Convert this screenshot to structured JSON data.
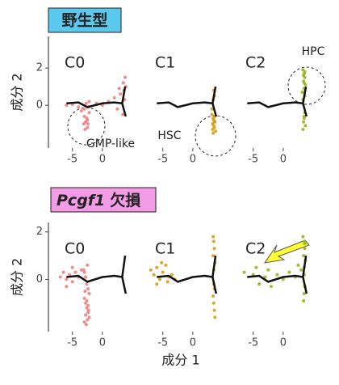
{
  "groups": [
    {
      "label": "野生型"
    },
    {
      "gene": "Pcgf1",
      "suffix": "欠損"
    }
  ],
  "chart_data": [
    {
      "type": "scatter",
      "title": "C0",
      "ylabel": "成分 2",
      "annotation": "GMP-like",
      "color": "#f08080",
      "xlim": [
        -9,
        5
      ],
      "ylim": [
        -2.3,
        3.7
      ],
      "xticks": [
        -5,
        0
      ],
      "yticks": [
        0,
        2
      ],
      "x": [
        -6,
        -5,
        -4,
        -3.5,
        -3,
        -2.8,
        -2.5,
        -2.2,
        -3,
        -2.6,
        -2.4,
        -2.9,
        -2.3,
        -2.7,
        -2.5,
        -3.1,
        -2.2,
        -1,
        0,
        1,
        2,
        2.5,
        3,
        3.5,
        3.6,
        3.8,
        3.4,
        3.7,
        3.9,
        2.8
      ],
      "y": [
        0,
        0.05,
        -0.1,
        -0.3,
        -0.6,
        -0.9,
        -1.2,
        -0.4,
        -0.2,
        -0.7,
        -1,
        -1.3,
        -0.1,
        0.1,
        -0.8,
        -1,
        0.2,
        0.1,
        0,
        0.2,
        0.4,
        -0.2,
        0.6,
        1.2,
        0.8,
        1.5,
        -0.5,
        0.3,
        1,
        0.9
      ]
    },
    {
      "type": "scatter",
      "title": "C1",
      "annotation": "HSC",
      "color": "#d4a017",
      "xlim": [
        -9,
        5
      ],
      "ylim": [
        -2.3,
        3.7
      ],
      "xticks": [
        -5,
        0
      ],
      "x": [
        3.2,
        3.4,
        3.6,
        3.5,
        3.3,
        3.7,
        3.4,
        3.6,
        3.5,
        3.3,
        3.8,
        3.4,
        3.6,
        3.5,
        3.2,
        3.7
      ],
      "y": [
        -0.5,
        -0.7,
        -0.9,
        -1.1,
        -1.3,
        -0.6,
        -1.5,
        -1.2,
        -0.8,
        -1,
        -1.4,
        0.3,
        0.5,
        0.8,
        -0.2,
        -0.9
      ]
    },
    {
      "type": "scatter",
      "title": "C2",
      "annotation": "HPC",
      "color": "#9ab31e",
      "xlim": [
        -9,
        5
      ],
      "ylim": [
        -2.3,
        3.7
      ],
      "xticks": [
        -5,
        0
      ],
      "x": [
        3.3,
        3.5,
        3.6,
        3.4,
        3.7,
        3.5,
        3.2,
        3.6,
        3.4,
        3.5,
        3.3,
        3.6,
        3.5,
        3.4,
        3.7,
        3.3,
        3.5,
        3.6
      ],
      "y": [
        1.9,
        1.7,
        1.5,
        1.3,
        1.1,
        0.9,
        0.7,
        0.5,
        1.6,
        1.2,
        0.3,
        -0.4,
        -0.6,
        -0.9,
        -1.1,
        -1.3,
        -0.7,
        1.8
      ]
    },
    {
      "type": "scatter",
      "title": "C0",
      "ylabel": "成分 2",
      "color": "#f08080",
      "xlim": [
        -9,
        5
      ],
      "ylim": [
        -2.2,
        2.4
      ],
      "xticks": [
        -5,
        0
      ],
      "yticks": [
        0,
        2
      ],
      "x": [
        -7,
        -6.5,
        -6,
        -5.5,
        -5,
        -4.5,
        -4,
        -3.5,
        -6,
        -5,
        -3,
        -2.8,
        -2.6,
        -2.4,
        -2.2,
        -3,
        -2.8,
        -2.6,
        -2.4,
        -2.2,
        -3,
        -2.7,
        -2.5,
        -2.3,
        -2.9,
        -2.6,
        -2.4,
        -3.1,
        -2.5,
        -2.8
      ],
      "y": [
        0.1,
        0.3,
        0,
        0.2,
        -0.1,
        0.3,
        0.1,
        0.4,
        -0.3,
        0.5,
        0.3,
        0.1,
        -0.2,
        -0.4,
        -0.6,
        -0.8,
        -1,
        -1.2,
        -1.4,
        -1.6,
        -1.8,
        -1.9,
        -1.7,
        -1.3,
        -0.5,
        -0.9,
        -1.1,
        0.4,
        0.6,
        -1.5
      ]
    },
    {
      "type": "scatter",
      "title": "C1",
      "xlabel": "成分 1",
      "color": "#d4a017",
      "xlim": [
        -9,
        5
      ],
      "ylim": [
        -2.2,
        2.4
      ],
      "xticks": [
        -5,
        0
      ],
      "x": [
        -7,
        -6.5,
        -6,
        -5.5,
        -5,
        -4.5,
        -4,
        -3.5,
        -3,
        -6,
        -5.2,
        -4.2,
        3.5,
        3.6,
        3.4,
        3.7,
        3.5,
        3.6,
        3.4,
        3.5,
        3.6,
        3.7,
        3.5,
        3.4
      ],
      "y": [
        0.4,
        0.2,
        0.5,
        0,
        0.3,
        0.6,
        0.1,
        0.2,
        0,
        -0.2,
        0.7,
        -0.1,
        1.6,
        1.3,
        1,
        0.7,
        0.4,
        -0.4,
        -0.7,
        -1,
        -1.3,
        -1.6,
        -0.2,
        1.8
      ]
    },
    {
      "type": "scatter",
      "title": "C2",
      "color": "#9ab31e",
      "xlim": [
        -9,
        5
      ],
      "ylim": [
        -2.2,
        2.4
      ],
      "xticks": [
        -5,
        0
      ],
      "x": [
        -6.5,
        -5,
        -4,
        -3,
        -2,
        -1,
        0,
        1,
        2,
        2.5,
        3,
        3.3,
        3.5,
        3.6,
        3.4,
        3.7,
        3.5,
        3.6,
        3.5,
        3.4,
        3.6,
        3.5,
        -4.5,
        -2.5
      ],
      "y": [
        0.3,
        0.2,
        -0.2,
        0.1,
        -0.3,
        0.2,
        0,
        0.3,
        0.1,
        0.6,
        0.4,
        1.8,
        1.6,
        1.3,
        1,
        0.8,
        0.5,
        -0.3,
        -0.6,
        -0.9,
        1.5,
        0.2,
        0.5,
        0.4
      ]
    }
  ]
}
